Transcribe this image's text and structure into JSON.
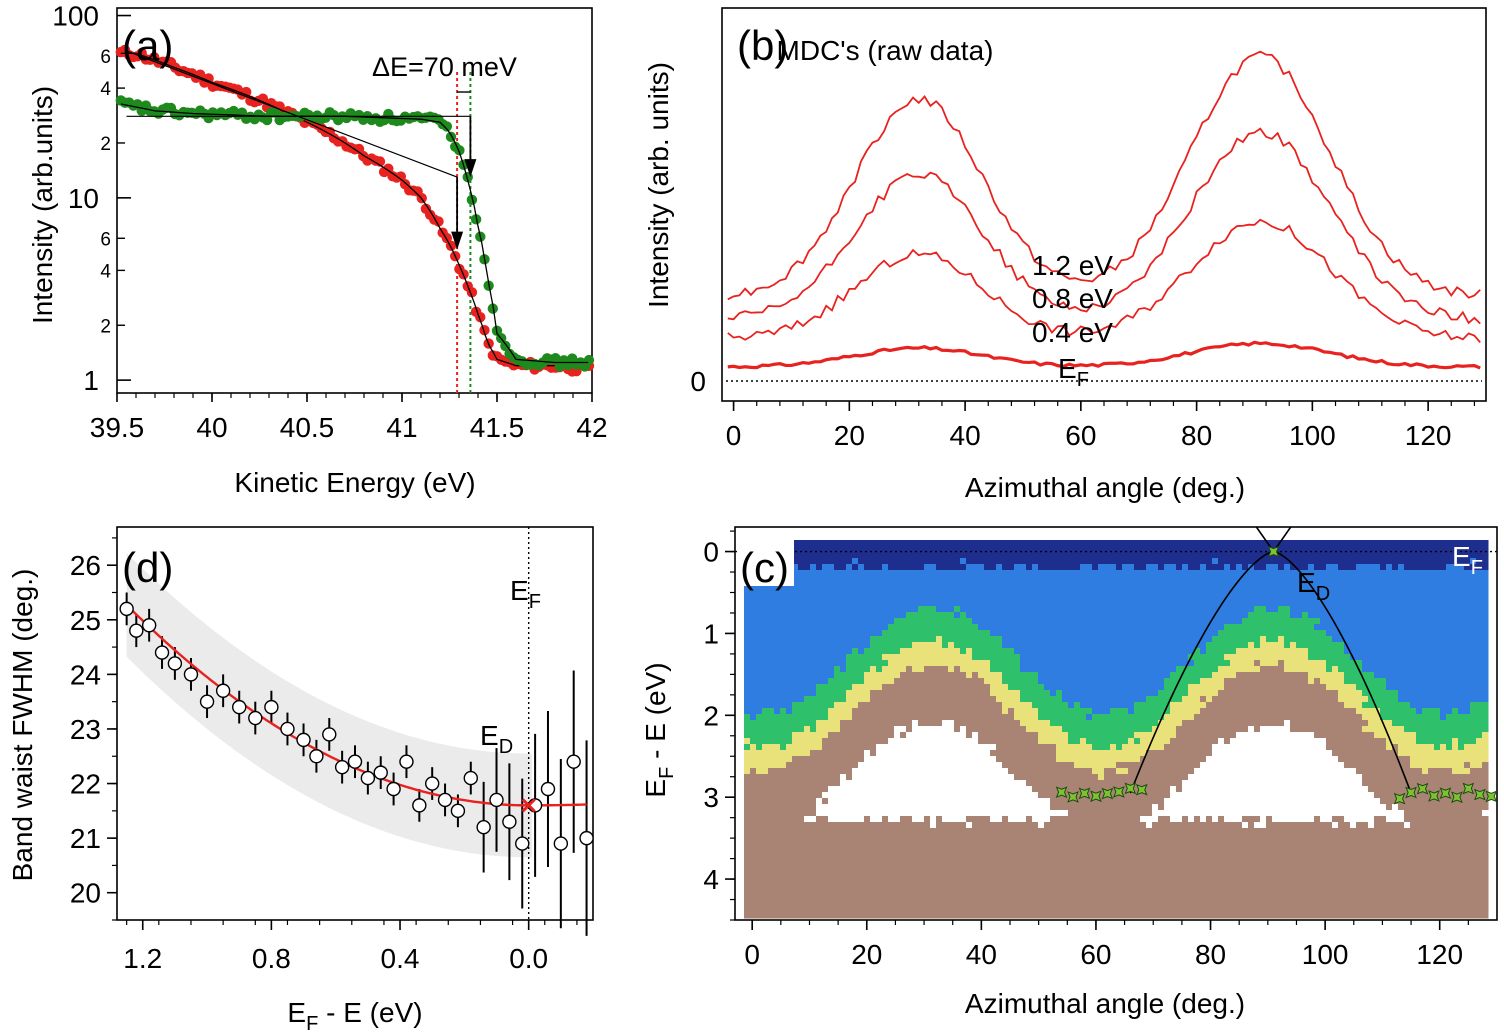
{
  "chart_data": [
    {
      "panel": "(a)",
      "type": "scatter",
      "xlabel": "Kinetic Energy (eV)",
      "ylabel": "Intensity (arb.units)",
      "xlim": [
        39.5,
        42.0
      ],
      "ylim": [
        0.85,
        110
      ],
      "yscale": "log",
      "x_ticks": [
        "39.5",
        "40",
        "40.5",
        "41",
        "41.5",
        "42"
      ],
      "y_major_ticks": [
        "1",
        "10",
        "100"
      ],
      "y_minor_labels": [
        "2",
        "4",
        "6",
        "2",
        "4",
        "6",
        "2",
        "4",
        "6"
      ],
      "annotation": "ΔE=70 meV",
      "marker_lines_x": [
        41.29,
        41.36
      ],
      "series": [
        {
          "color": "#e8221e",
          "x": [
            39.6,
            39.8,
            40.0,
            40.2,
            40.4,
            40.6,
            40.8,
            41.0,
            41.1,
            41.2,
            41.3,
            41.35,
            41.4,
            41.45,
            41.5,
            41.6,
            41.8,
            42.0
          ],
          "y": [
            62,
            52,
            43,
            36,
            29,
            23,
            17,
            12.5,
            10,
            6.8,
            4.3,
            3.2,
            2.3,
            1.6,
            1.3,
            1.2,
            1.2,
            1.15
          ]
        },
        {
          "color": "#1e8a1e",
          "x": [
            39.5,
            39.7,
            39.9,
            40.1,
            40.3,
            40.5,
            40.7,
            40.9,
            41.1,
            41.2,
            41.25,
            41.3,
            41.35,
            41.4,
            41.45,
            41.5,
            41.6,
            41.8,
            42.0
          ],
          "y": [
            33,
            30,
            29,
            28.5,
            28,
            28,
            28,
            27.5,
            27,
            26,
            23,
            18,
            12,
            7,
            3.6,
            1.8,
            1.3,
            1.25,
            1.25
          ]
        }
      ]
    },
    {
      "panel": "(b)",
      "type": "line",
      "title": "MDC's (raw data)",
      "xlabel": "Azimuthal angle (deg.)",
      "ylabel": "Intensity (arb. units)",
      "xlim": [
        -2,
        130
      ],
      "x_ticks": [
        "0",
        "20",
        "40",
        "60",
        "80",
        "100",
        "120"
      ],
      "y_ticks": [
        "0"
      ],
      "series": [
        {
          "name": "E_F",
          "values": [
            0.3,
            0.3,
            0.7,
            0.3,
            0.3,
            0.3,
            0.8,
            0.3,
            0.3,
            0.3
          ]
        },
        {
          "name": "0.4 eV",
          "values": [
            0.9,
            0.9,
            2.7,
            0.9,
            0.9,
            0.9,
            3.4,
            0.9,
            0.9,
            0.9
          ]
        },
        {
          "name": "0.8 eV",
          "values": [
            1.3,
            1.3,
            4.4,
            1.3,
            1.3,
            1.3,
            5.3,
            1.3,
            1.3,
            1.3
          ]
        },
        {
          "name": "1.2 eV",
          "values": [
            1.8,
            1.8,
            6.0,
            1.8,
            1.8,
            1.8,
            6.9,
            1.8,
            1.8,
            1.8
          ]
        }
      ],
      "peak_centers_deg": [
        32,
        91
      ],
      "peak_widths_deg": [
        11,
        12
      ],
      "curve_labels": [
        "1.2 eV",
        "0.8 eV",
        "0.4 eV",
        "E",
        "F"
      ]
    },
    {
      "panel": "(d)",
      "type": "scatter",
      "xlabel_main": "E",
      "xlabel_sub": "F",
      "xlabel_rest": " - E (eV)",
      "ylabel": "Band waist FWHM (deg.)",
      "xlim": [
        1.28,
        -0.2
      ],
      "ylim": [
        19.5,
        26.7
      ],
      "x_ticks": [
        "1.2",
        "0.8",
        "0.4",
        "0.0"
      ],
      "y_ticks": [
        "20",
        "21",
        "22",
        "23",
        "24",
        "25",
        "26"
      ],
      "label_EF_main": "E",
      "label_EF_sub": "F",
      "label_ED_main": "E",
      "label_ED_sub": "D",
      "x": [
        1.25,
        1.22,
        1.18,
        1.14,
        1.1,
        1.05,
        1.0,
        0.95,
        0.9,
        0.85,
        0.8,
        0.75,
        0.7,
        0.66,
        0.62,
        0.58,
        0.54,
        0.5,
        0.46,
        0.42,
        0.38,
        0.34,
        0.3,
        0.26,
        0.22,
        0.18,
        0.14,
        0.1,
        0.06,
        0.02,
        -0.02,
        -0.06,
        -0.1,
        -0.14,
        -0.18
      ],
      "y": [
        25.2,
        24.8,
        24.9,
        24.4,
        24.2,
        24.0,
        23.5,
        23.7,
        23.4,
        23.2,
        23.4,
        23.0,
        22.8,
        22.5,
        22.9,
        22.3,
        22.4,
        22.1,
        22.2,
        21.9,
        22.4,
        21.6,
        22.0,
        21.7,
        21.5,
        22.1,
        21.2,
        21.7,
        21.3,
        20.9,
        21.6,
        21.9,
        20.9,
        22.4,
        21.0
      ],
      "fit": {
        "color": "#e8221e",
        "vertex_x": 0.0,
        "vertex_y": 21.6
      }
    },
    {
      "panel": "(c)",
      "type": "heatmap",
      "xlabel": "Azimuthal angle (deg.)",
      "ylabel_main": "E",
      "ylabel_sub": "F",
      "ylabel_rest": " - E (eV)",
      "xlim": [
        -3,
        130
      ],
      "ylim": [
        -0.3,
        4.5
      ],
      "x_ticks": [
        "0",
        "20",
        "40",
        "60",
        "80",
        "100",
        "120"
      ],
      "y_ticks": [
        "0",
        "1",
        "2",
        "3",
        "4"
      ],
      "label_EF_main": "E",
      "label_EF_sub": "F",
      "label_ED_main": "E",
      "label_ED_sub": "D",
      "dirac_point": {
        "x": 91,
        "y": 0.0
      },
      "green_points_left_x": [
        54,
        56,
        58,
        60,
        62,
        64,
        66,
        68
      ],
      "green_points_right_x": [
        113,
        115,
        117,
        119,
        121,
        123,
        125,
        127,
        129
      ],
      "green_points_y": 2.95,
      "colors": [
        "#1d2e8e",
        "#2f7de0",
        "#2fc06b",
        "#e9e27a",
        "#a98474",
        "#ffffff"
      ]
    }
  ],
  "panel_labels": [
    "(a)",
    "(b)",
    "(c)",
    "(d)"
  ]
}
